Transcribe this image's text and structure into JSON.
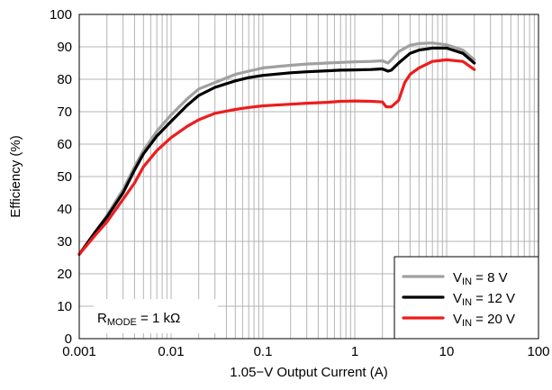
{
  "chart_data": {
    "type": "line",
    "x_scale": "log",
    "xlabel": "1.05−V Output Current (A)",
    "ylabel": "Efficiency (%)",
    "xlim": [
      0.001,
      100
    ],
    "ylim": [
      0,
      100
    ],
    "x_ticks": [
      0.001,
      0.01,
      0.1,
      1,
      10,
      100
    ],
    "x_tick_labels": [
      "0.001",
      "0.01",
      "0.1",
      "1",
      "10",
      "100"
    ],
    "y_ticks": [
      0,
      10,
      20,
      30,
      40,
      50,
      60,
      70,
      80,
      90,
      100
    ],
    "y_tick_labels": [
      "0",
      "10",
      "20",
      "30",
      "40",
      "50",
      "60",
      "70",
      "80",
      "90",
      "100"
    ],
    "grid": true,
    "legend_position": "bottom-right",
    "annotation": {
      "main": "R",
      "sub": "MODE",
      "rest": " = 1 kΩ"
    },
    "series": [
      {
        "name": "V_IN = 8 V",
        "label_main": "V",
        "label_sub": "IN",
        "label_rest": " = 8 V",
        "color": "#a0a0a0",
        "x": [
          0.001,
          0.0015,
          0.002,
          0.003,
          0.004,
          0.005,
          0.007,
          0.01,
          0.015,
          0.02,
          0.03,
          0.05,
          0.07,
          0.1,
          0.2,
          0.3,
          0.5,
          0.7,
          1,
          1.5,
          2,
          2.3,
          2.5,
          3,
          4,
          5,
          7,
          10,
          15,
          20
        ],
        "y": [
          26,
          33,
          38,
          46,
          53,
          58,
          64,
          69,
          74,
          77,
          79,
          81.5,
          82.5,
          83.5,
          84.3,
          84.7,
          85,
          85.2,
          85.4,
          85.5,
          85.7,
          85,
          86,
          88.5,
          90.5,
          91,
          91.2,
          90.6,
          89,
          86
        ]
      },
      {
        "name": "V_IN = 12 V",
        "label_main": "V",
        "label_sub": "IN",
        "label_rest": " = 12 V",
        "color": "#000000",
        "x": [
          0.001,
          0.0015,
          0.002,
          0.003,
          0.004,
          0.005,
          0.007,
          0.01,
          0.015,
          0.02,
          0.03,
          0.05,
          0.07,
          0.1,
          0.2,
          0.3,
          0.5,
          0.7,
          1,
          1.5,
          2,
          2.3,
          2.5,
          3,
          4,
          5,
          7,
          10,
          15,
          20
        ],
        "y": [
          26,
          33,
          37.5,
          45,
          52,
          57,
          62.5,
          67,
          72,
          75,
          77.5,
          79.5,
          80.5,
          81.2,
          82,
          82.3,
          82.6,
          82.8,
          82.9,
          83,
          83.2,
          82.5,
          82.8,
          85,
          88,
          89,
          89.6,
          89.6,
          88,
          85
        ]
      },
      {
        "name": "V_IN = 20 V",
        "label_main": "V",
        "label_sub": "IN",
        "label_rest": " = 20 V",
        "color": "#ee1c1c",
        "x": [
          0.001,
          0.0015,
          0.002,
          0.003,
          0.004,
          0.005,
          0.007,
          0.01,
          0.015,
          0.02,
          0.03,
          0.05,
          0.07,
          0.1,
          0.2,
          0.3,
          0.5,
          0.7,
          1,
          1.5,
          2,
          2.2,
          2.5,
          3,
          3.5,
          4,
          5,
          7,
          10,
          15,
          20
        ],
        "y": [
          26,
          32,
          36,
          43,
          48,
          53,
          58,
          62,
          65.5,
          67.5,
          69.5,
          70.7,
          71.3,
          71.8,
          72.3,
          72.6,
          72.9,
          73.2,
          73.3,
          73.2,
          73,
          71.5,
          71.5,
          73.5,
          79,
          81.5,
          83.5,
          85.5,
          86,
          85.5,
          83
        ]
      }
    ]
  }
}
